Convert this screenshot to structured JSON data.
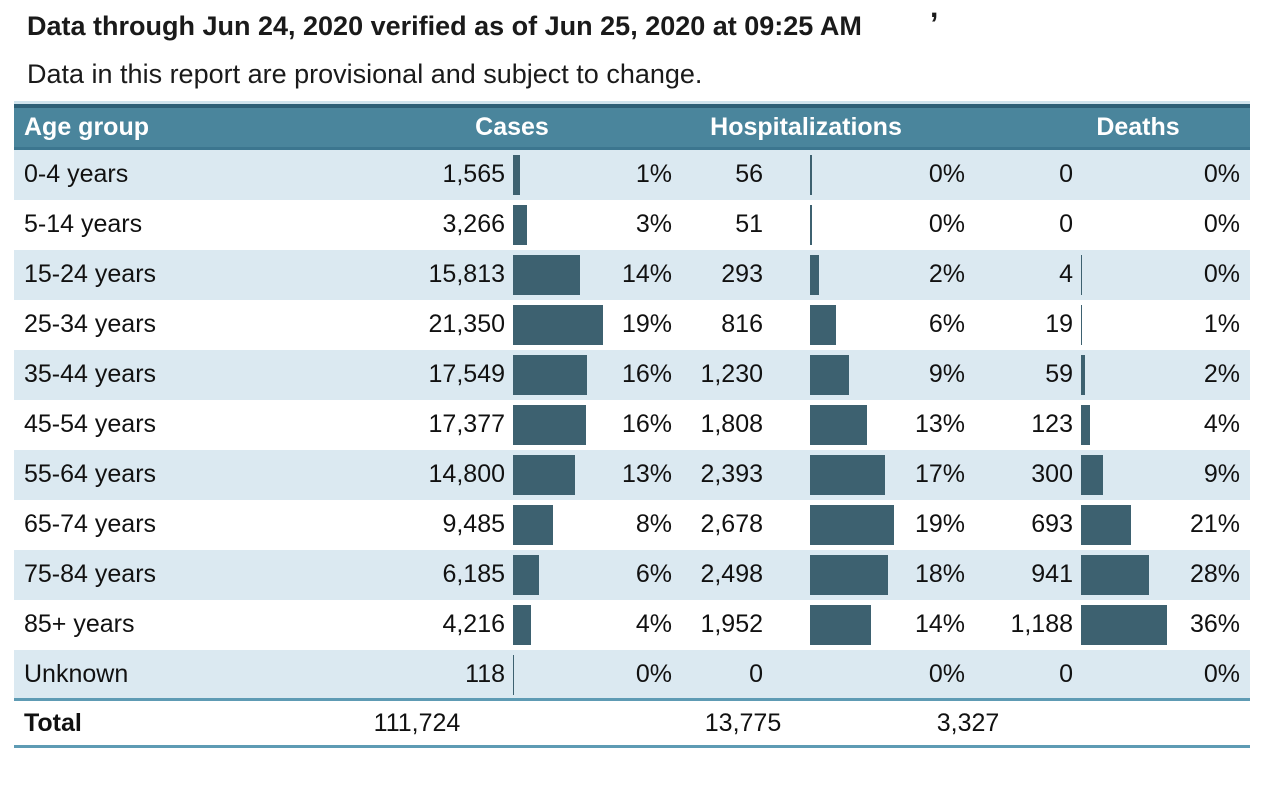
{
  "header": {
    "clipped_fragment": ",",
    "title_line1": "Data through Jun 24, 2020 verified as of Jun 25, 2020 at 09:25 AM",
    "title_line2": "Data in this report are provisional and subject to change."
  },
  "table": {
    "columns": {
      "age": "Age group",
      "cases": "Cases",
      "hospitalizations": "Hospitalizations",
      "deaths": "Deaths"
    },
    "rows": [
      {
        "age_group": "0-4 years",
        "cases": "1,565",
        "cases_pct": "1%",
        "hosp": "56",
        "hosp_pct": "0%",
        "deaths": "0",
        "deaths_pct": "0%"
      },
      {
        "age_group": "5-14 years",
        "cases": "3,266",
        "cases_pct": "3%",
        "hosp": "51",
        "hosp_pct": "0%",
        "deaths": "0",
        "deaths_pct": "0%"
      },
      {
        "age_group": "15-24 years",
        "cases": "15,813",
        "cases_pct": "14%",
        "hosp": "293",
        "hosp_pct": "2%",
        "deaths": "4",
        "deaths_pct": "0%"
      },
      {
        "age_group": "25-34 years",
        "cases": "21,350",
        "cases_pct": "19%",
        "hosp": "816",
        "hosp_pct": "6%",
        "deaths": "19",
        "deaths_pct": "1%"
      },
      {
        "age_group": "35-44 years",
        "cases": "17,549",
        "cases_pct": "16%",
        "hosp": "1,230",
        "hosp_pct": "9%",
        "deaths": "59",
        "deaths_pct": "2%"
      },
      {
        "age_group": "45-54 years",
        "cases": "17,377",
        "cases_pct": "16%",
        "hosp": "1,808",
        "hosp_pct": "13%",
        "deaths": "123",
        "deaths_pct": "4%"
      },
      {
        "age_group": "55-64 years",
        "cases": "14,800",
        "cases_pct": "13%",
        "hosp": "2,393",
        "hosp_pct": "17%",
        "deaths": "300",
        "deaths_pct": "9%"
      },
      {
        "age_group": "65-74 years",
        "cases": "9,485",
        "cases_pct": "8%",
        "hosp": "2,678",
        "hosp_pct": "19%",
        "deaths": "693",
        "deaths_pct": "21%"
      },
      {
        "age_group": "75-84 years",
        "cases": "6,185",
        "cases_pct": "6%",
        "hosp": "2,498",
        "hosp_pct": "18%",
        "deaths": "941",
        "deaths_pct": "28%"
      },
      {
        "age_group": "85+ years",
        "cases": "4,216",
        "cases_pct": "4%",
        "hosp": "1,952",
        "hosp_pct": "14%",
        "deaths": "1,188",
        "deaths_pct": "36%"
      },
      {
        "age_group": "Unknown",
        "cases": "118",
        "cases_pct": "0%",
        "hosp": "0",
        "hosp_pct": "0%",
        "deaths": "0",
        "deaths_pct": "0%"
      }
    ],
    "total": {
      "label": "Total",
      "cases": "111,724",
      "hospitalizations": "13,775",
      "deaths": "3,327"
    }
  },
  "chart_data": {
    "type": "table",
    "title": "Data through Jun 24, 2020 verified as of Jun 25, 2020 at 09:25 AM",
    "subtitle": "Data in this report are provisional and subject to change.",
    "categories": [
      "0-4 years",
      "5-14 years",
      "15-24 years",
      "25-34 years",
      "35-44 years",
      "45-54 years",
      "55-64 years",
      "65-74 years",
      "75-84 years",
      "85+ years",
      "Unknown"
    ],
    "series": [
      {
        "name": "Cases",
        "values": [
          1565,
          3266,
          15813,
          21350,
          17549,
          17377,
          14800,
          9485,
          6185,
          4216,
          118
        ],
        "percents": [
          1,
          3,
          14,
          19,
          16,
          16,
          13,
          8,
          6,
          4,
          0
        ],
        "total": 111724
      },
      {
        "name": "Hospitalizations",
        "values": [
          56,
          51,
          293,
          816,
          1230,
          1808,
          2393,
          2678,
          2498,
          1952,
          0
        ],
        "percents": [
          0,
          0,
          2,
          6,
          9,
          13,
          17,
          19,
          18,
          14,
          0
        ],
        "total": 13775
      },
      {
        "name": "Deaths",
        "values": [
          0,
          0,
          4,
          19,
          59,
          123,
          300,
          693,
          941,
          1188,
          0
        ],
        "percents": [
          0,
          0,
          0,
          1,
          2,
          4,
          9,
          21,
          28,
          36,
          0
        ],
        "total": 3327
      }
    ],
    "layout": {
      "bar_type": "inline horizontal bars",
      "bars_normalized_to_column_max": true,
      "bar_color": "#3d6170",
      "header_color": "#4a859c",
      "alt_row_color": "#dbe9f1",
      "rule_color": "#5e9bb4"
    }
  }
}
